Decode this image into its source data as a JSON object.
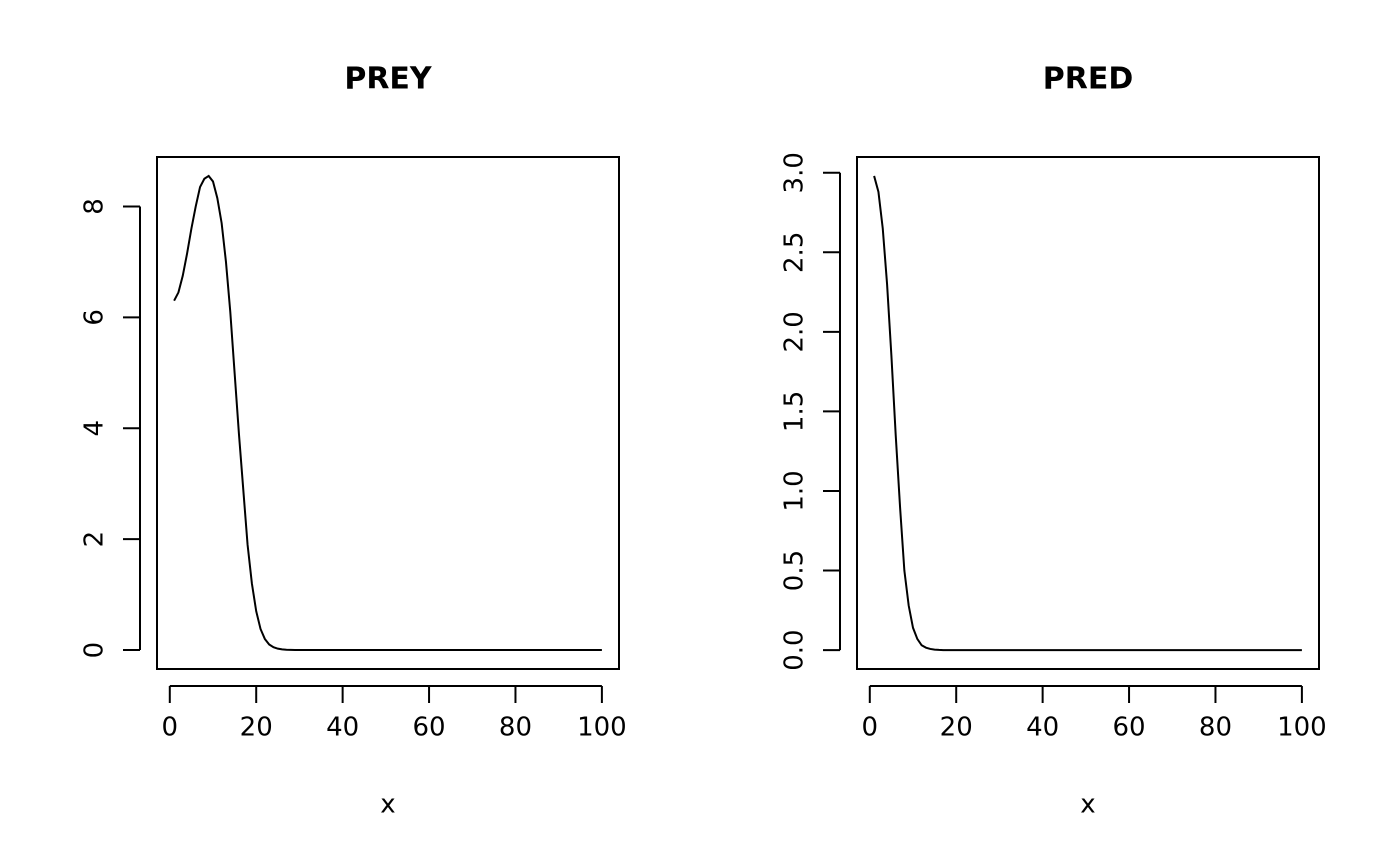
{
  "chart_data": [
    {
      "type": "line",
      "title": "PREY",
      "xlabel": "x",
      "color": "#000000",
      "x": [
        1,
        2,
        3,
        4,
        5,
        6,
        7,
        8,
        9,
        10,
        11,
        12,
        13,
        14,
        15,
        16,
        17,
        18,
        19,
        20,
        21,
        22,
        23,
        24,
        25,
        26,
        27,
        28,
        29,
        30,
        31,
        32,
        33,
        34,
        35,
        36,
        37,
        38,
        39,
        40,
        41,
        42,
        43,
        44,
        45,
        46,
        47,
        48,
        49,
        50,
        51,
        52,
        53,
        54,
        55,
        56,
        57,
        58,
        59,
        60,
        61,
        62,
        63,
        64,
        65,
        66,
        67,
        68,
        69,
        70,
        71,
        72,
        73,
        74,
        75,
        76,
        77,
        78,
        79,
        80,
        81,
        82,
        83,
        84,
        85,
        86,
        87,
        88,
        89,
        90,
        91,
        92,
        93,
        94,
        95,
        96,
        97,
        98,
        99,
        100
      ],
      "values": [
        6.3,
        6.45,
        6.75,
        7.15,
        7.6,
        8.0,
        8.35,
        8.5,
        8.55,
        8.45,
        8.15,
        7.7,
        7.0,
        6.1,
        5.0,
        3.9,
        2.9,
        1.9,
        1.2,
        0.7,
        0.38,
        0.2,
        0.1,
        0.05,
        0.025,
        0.012,
        0.006,
        0.003,
        0.001,
        0,
        0,
        0,
        0,
        0,
        0,
        0,
        0,
        0,
        0,
        0,
        0,
        0,
        0,
        0,
        0,
        0,
        0,
        0,
        0,
        0,
        0,
        0,
        0,
        0,
        0,
        0,
        0,
        0,
        0,
        0,
        0,
        0,
        0,
        0,
        0,
        0,
        0,
        0,
        0,
        0,
        0,
        0,
        0,
        0,
        0,
        0,
        0,
        0,
        0,
        0,
        0,
        0,
        0,
        0,
        0,
        0,
        0,
        0,
        0,
        0,
        0,
        0,
        0,
        0,
        0,
        0,
        0,
        0,
        0,
        0
      ],
      "xlim": [
        -2.96,
        103.96
      ],
      "ylim": [
        -0.342,
        8.892
      ],
      "xticks": [
        0,
        20,
        40,
        60,
        80,
        100
      ],
      "yticks": [
        0,
        2,
        4,
        6,
        8
      ]
    },
    {
      "type": "line",
      "title": "PRED",
      "xlabel": "x",
      "color": "#000000",
      "x": [
        1,
        2,
        3,
        4,
        5,
        6,
        7,
        8,
        9,
        10,
        11,
        12,
        13,
        14,
        15,
        16,
        17,
        18,
        19,
        20,
        21,
        22,
        23,
        24,
        25,
        26,
        27,
        28,
        29,
        30,
        31,
        32,
        33,
        34,
        35,
        36,
        37,
        38,
        39,
        40,
        41,
        42,
        43,
        44,
        45,
        46,
        47,
        48,
        49,
        50,
        51,
        52,
        53,
        54,
        55,
        56,
        57,
        58,
        59,
        60,
        61,
        62,
        63,
        64,
        65,
        66,
        67,
        68,
        69,
        70,
        71,
        72,
        73,
        74,
        75,
        76,
        77,
        78,
        79,
        80,
        81,
        82,
        83,
        84,
        85,
        86,
        87,
        88,
        89,
        90,
        91,
        92,
        93,
        94,
        95,
        96,
        97,
        98,
        99,
        100
      ],
      "values": [
        2.98,
        2.88,
        2.65,
        2.3,
        1.85,
        1.35,
        0.9,
        0.5,
        0.28,
        0.14,
        0.07,
        0.03,
        0.015,
        0.007,
        0.003,
        0.001,
        0,
        0,
        0,
        0,
        0,
        0,
        0,
        0,
        0,
        0,
        0,
        0,
        0,
        0,
        0,
        0,
        0,
        0,
        0,
        0,
        0,
        0,
        0,
        0,
        0,
        0,
        0,
        0,
        0,
        0,
        0,
        0,
        0,
        0,
        0,
        0,
        0,
        0,
        0,
        0,
        0,
        0,
        0,
        0,
        0,
        0,
        0,
        0,
        0,
        0,
        0,
        0,
        0,
        0,
        0,
        0,
        0,
        0,
        0,
        0,
        0,
        0,
        0,
        0,
        0,
        0,
        0,
        0,
        0,
        0,
        0,
        0,
        0,
        0,
        0,
        0,
        0,
        0,
        0,
        0,
        0,
        0,
        0,
        0
      ],
      "xlim": [
        -2.96,
        103.96
      ],
      "ylim": [
        -0.119,
        3.099
      ],
      "xticks": [
        0,
        20,
        40,
        60,
        80,
        100
      ],
      "yticks": [
        {
          "value": 0,
          "label": "0.0"
        },
        0.5,
        {
          "value": 1,
          "label": "1.0"
        },
        1.5,
        {
          "value": 2,
          "label": "2.0"
        },
        2.5,
        {
          "value": 3,
          "label": "3.0"
        }
      ]
    }
  ]
}
